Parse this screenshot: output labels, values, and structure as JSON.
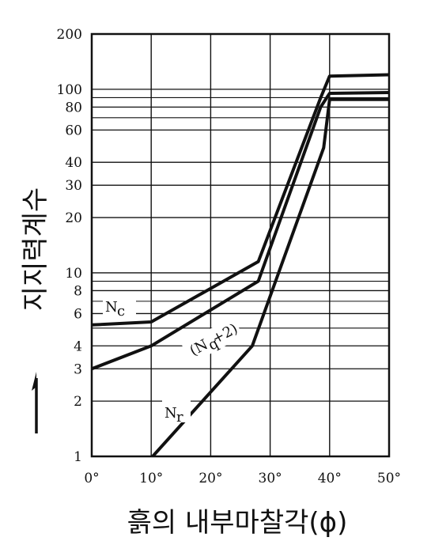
{
  "chart_data": {
    "type": "line",
    "title": "",
    "xlabel": "흙의 내부마찰각(ϕ)",
    "ylabel": "지지력계수",
    "x_unit": "°",
    "y_scale": "log",
    "xlim": [
      0,
      50
    ],
    "ylim": [
      1,
      200
    ],
    "x_ticks": [
      0,
      10,
      20,
      30,
      40,
      50
    ],
    "x_tick_labels": [
      "0°",
      "10°",
      "20°",
      "30°",
      "40°",
      "50°"
    ],
    "y_ticks": [
      1,
      2,
      3,
      4,
      6,
      8,
      10,
      20,
      30,
      40,
      60,
      80,
      100,
      200
    ],
    "y_tick_labels": [
      "1",
      "2",
      "3",
      "4",
      "6",
      "8",
      "10",
      "20",
      "30",
      "40",
      "60",
      "80",
      "100",
      "200"
    ],
    "grid": true,
    "series": [
      {
        "name": "Nc",
        "x": [
          0,
          10,
          28,
          38.5,
          40,
          50
        ],
        "y": [
          5.2,
          5.4,
          11.5,
          90,
          118,
          120
        ]
      },
      {
        "name": "(Nq+2)",
        "x": [
          0,
          10,
          28,
          38.5,
          40,
          50
        ],
        "y": [
          3,
          4,
          9,
          80,
          95,
          96
        ]
      },
      {
        "name": "Nr",
        "x": [
          10,
          27,
          39,
          40,
          50
        ],
        "y": [
          0.98,
          4,
          48,
          88,
          88
        ]
      }
    ],
    "annotations": [
      {
        "series": "Nc",
        "text_main": "N",
        "text_sub": "c"
      },
      {
        "series": "(Nq+2)",
        "text_pre": "(N",
        "text_sub": "q",
        "text_post": "+2)"
      },
      {
        "series": "Nr",
        "text_main": "N",
        "text_sub": "r"
      }
    ],
    "ylabel_arrow": "up"
  }
}
